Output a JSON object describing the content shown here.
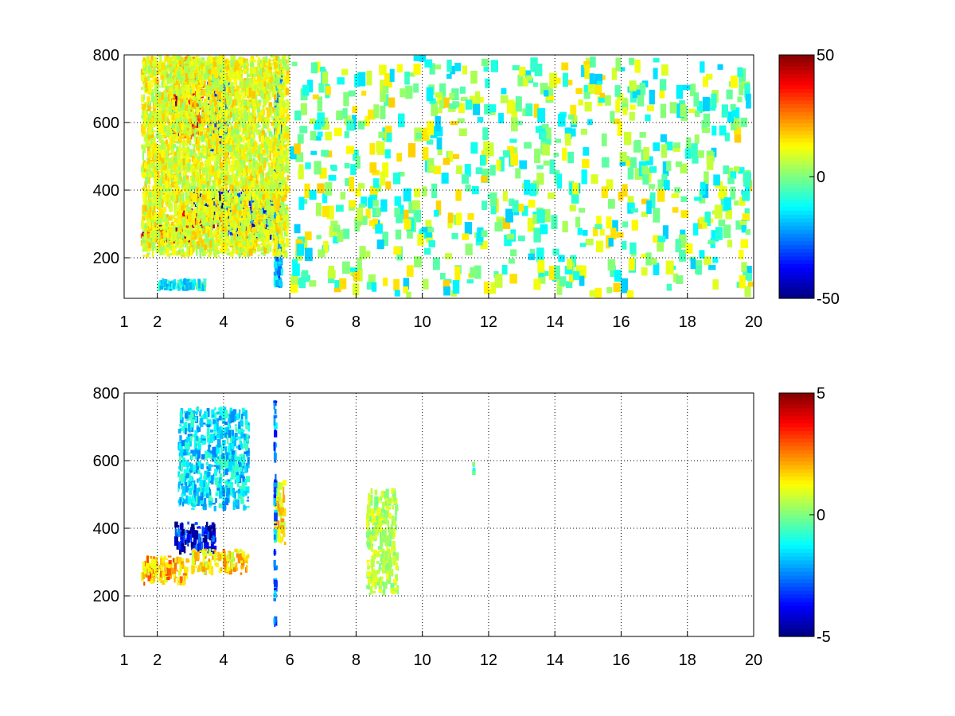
{
  "chart_data": [
    {
      "type": "heatmap",
      "title": "",
      "xlabel": "",
      "ylabel": "",
      "x_ticks": [
        1,
        2,
        4,
        6,
        8,
        10,
        12,
        14,
        16,
        18,
        20
      ],
      "y_ticks": [
        200,
        400,
        600,
        800
      ],
      "xlim": [
        1,
        20
      ],
      "ylim": [
        80,
        800
      ],
      "grid": true,
      "colormap": "jet",
      "colorbar": {
        "min": -50,
        "max": 50,
        "ticks": [
          50,
          0,
          -50
        ]
      },
      "features": [
        {
          "x": [
            1.5,
            3.0
          ],
          "y": [
            240,
            300
          ],
          "value": 45
        },
        {
          "x": [
            2.6,
            4.0
          ],
          "y": [
            280,
            350
          ],
          "value": 40
        },
        {
          "x": [
            3.6,
            4.2
          ],
          "y": [
            330,
            400
          ],
          "value": 30
        },
        {
          "x": [
            3.0,
            4.1
          ],
          "y": [
            330,
            400
          ],
          "value": -40
        },
        {
          "x": [
            4.0,
            5.5
          ],
          "y": [
            290,
            350
          ],
          "value": 20
        },
        {
          "x": [
            4.0,
            5.7
          ],
          "y": [
            250,
            400
          ],
          "value": -30
        },
        {
          "x": [
            2.4,
            3.4
          ],
          "y": [
            550,
            700
          ],
          "value": 35
        },
        {
          "x": [
            3.5,
            4.2
          ],
          "y": [
            500,
            760
          ],
          "value": -25
        },
        {
          "x": [
            2.5,
            3.5
          ],
          "y": [
            700,
            800
          ],
          "value": 18
        },
        {
          "x": [
            5.5,
            5.8
          ],
          "y": [
            100,
            780
          ],
          "value": -20
        },
        {
          "x": [
            1.5,
            6.0
          ],
          "y": [
            200,
            800
          ],
          "value": 10
        },
        {
          "x": [
            2.0,
            3.5
          ],
          "y": [
            100,
            140
          ],
          "value": -12
        },
        {
          "x": [
            6.0,
            20.0
          ],
          "y": [
            80,
            800
          ],
          "value": 5
        }
      ]
    },
    {
      "type": "heatmap",
      "title": "",
      "xlabel": "",
      "ylabel": "",
      "x_ticks": [
        1,
        2,
        4,
        6,
        8,
        10,
        12,
        14,
        16,
        18,
        20
      ],
      "y_ticks": [
        200,
        400,
        600,
        800
      ],
      "xlim": [
        1,
        20
      ],
      "ylim": [
        80,
        800
      ],
      "grid": true,
      "colormap": "jet",
      "colorbar": {
        "min": -5,
        "max": 5,
        "ticks": [
          5,
          0,
          -5
        ]
      },
      "features": [
        {
          "x": [
            1.5,
            3.0
          ],
          "y": [
            230,
            320
          ],
          "value": 2
        },
        {
          "x": [
            2.5,
            3.8
          ],
          "y": [
            320,
            420
          ],
          "value": -4
        },
        {
          "x": [
            3.0,
            4.8
          ],
          "y": [
            260,
            340
          ],
          "value": 1.5
        },
        {
          "x": [
            2.6,
            4.8
          ],
          "y": [
            450,
            760
          ],
          "value": -1.5
        },
        {
          "x": [
            5.5,
            5.9
          ],
          "y": [
            350,
            550
          ],
          "value": 1.5
        },
        {
          "x": [
            5.5,
            5.6
          ],
          "y": [
            100,
            780
          ],
          "value": -2.5
        },
        {
          "x": [
            8.3,
            9.3
          ],
          "y": [
            200,
            520
          ],
          "value": 0.5
        },
        {
          "x": [
            11.5,
            11.6
          ],
          "y": [
            550,
            600
          ],
          "value": -0.5
        }
      ]
    }
  ]
}
